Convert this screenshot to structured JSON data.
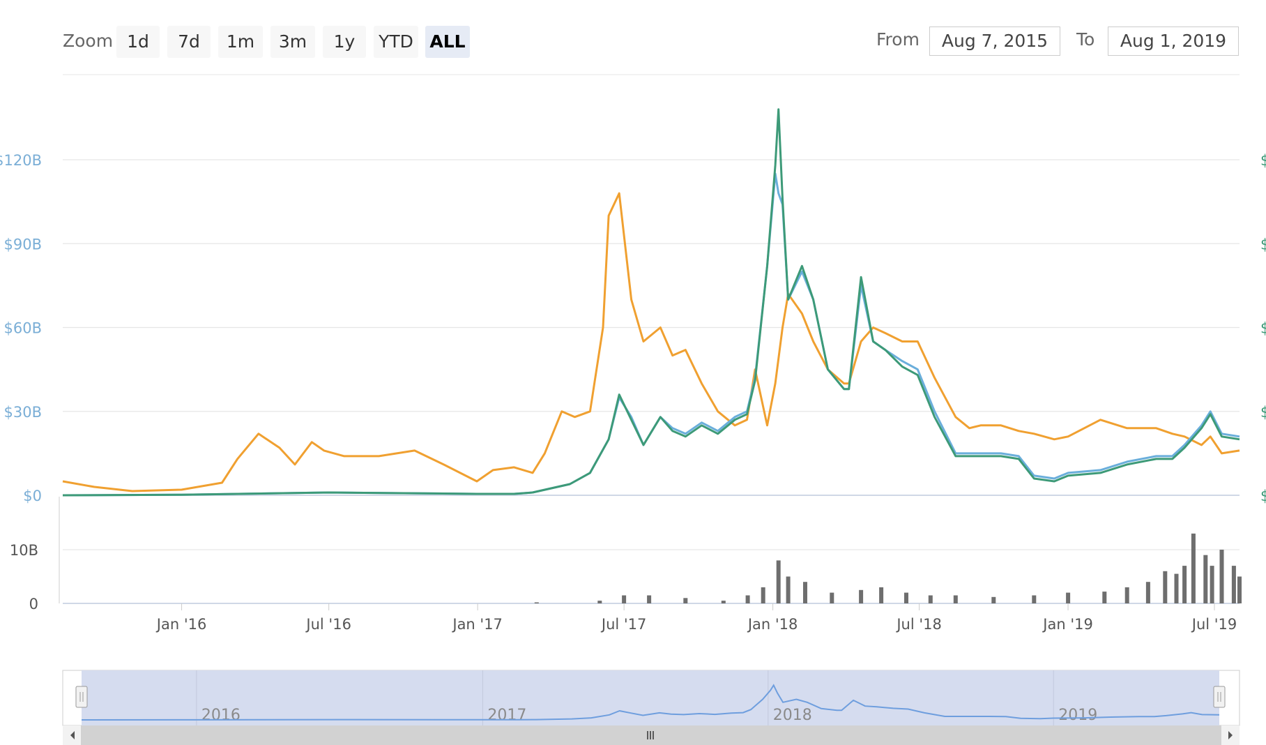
{
  "toolbar": {
    "zoom_label": "Zoom",
    "zoom_buttons": [
      "1d",
      "7d",
      "1m",
      "3m",
      "1y",
      "YTD",
      "ALL"
    ],
    "active_zoom": "ALL",
    "from_label": "From",
    "from_value": "Aug 7, 2015",
    "to_label": "To",
    "to_value": "Aug 1, 2019"
  },
  "colors": {
    "orange": "#f0a030",
    "green": "#3d9a78",
    "blue": "#6aaedb",
    "volume": "#6e6e6e",
    "navigator_fill": "#d5dcef",
    "navigator_line": "#6e9ede"
  },
  "chart_data": {
    "type": "line",
    "title": "",
    "y_axis_left": {
      "ticks": [
        "$0",
        "$30B",
        "$60B",
        "$90B",
        "$120B"
      ],
      "ylim": [
        0,
        130
      ]
    },
    "x_axis_ticks": [
      "Jan '16",
      "Jul '16",
      "Jan '17",
      "Jul '17",
      "Jan '18",
      "Jul '18",
      "Jan '19",
      "Jul '19"
    ],
    "x_tick_dates": [
      "2016-01-01",
      "2016-07-01",
      "2017-01-01",
      "2017-07-01",
      "2018-01-01",
      "2018-07-01",
      "2019-01-01",
      "2019-07-01"
    ],
    "x_range": [
      "2015-08-07",
      "2019-08-01"
    ],
    "series": [
      {
        "color": "#f0a030",
        "x": [
          "2015-08-07",
          "2015-09-15",
          "2015-11-01",
          "2016-01-01",
          "2016-02-20",
          "2016-03-10",
          "2016-04-05",
          "2016-05-01",
          "2016-05-20",
          "2016-06-10",
          "2016-06-25",
          "2016-07-20",
          "2016-09-01",
          "2016-10-15",
          "2016-11-20",
          "2016-12-31",
          "2017-01-20",
          "2017-02-15",
          "2017-03-10",
          "2017-03-25",
          "2017-04-15",
          "2017-05-01",
          "2017-05-20",
          "2017-06-05",
          "2017-06-12",
          "2017-06-25",
          "2017-07-10",
          "2017-07-25",
          "2017-08-15",
          "2017-08-30",
          "2017-09-15",
          "2017-10-05",
          "2017-10-25",
          "2017-11-15",
          "2017-11-30",
          "2017-12-10",
          "2017-12-25",
          "2018-01-04",
          "2018-01-13",
          "2018-01-20",
          "2018-02-06",
          "2018-02-20",
          "2018-03-10",
          "2018-03-30",
          "2018-04-05",
          "2018-04-20",
          "2018-05-05",
          "2018-05-20",
          "2018-06-10",
          "2018-06-29",
          "2018-07-20",
          "2018-08-15",
          "2018-09-01",
          "2018-09-15",
          "2018-10-10",
          "2018-11-01",
          "2018-11-20",
          "2018-12-15",
          "2019-01-01",
          "2019-02-10",
          "2019-03-15",
          "2019-04-20",
          "2019-05-10",
          "2019-05-25",
          "2019-06-15",
          "2019-06-26",
          "2019-07-10",
          "2019-08-01"
        ],
        "values": [
          5,
          3,
          1.5,
          2,
          4.5,
          13,
          22,
          17,
          11,
          19,
          16,
          14,
          14,
          16,
          11,
          5,
          9,
          10,
          8,
          15,
          30,
          28,
          30,
          60,
          100,
          108,
          70,
          55,
          60,
          50,
          52,
          40,
          30,
          25,
          27,
          45,
          25,
          40,
          60,
          72,
          65,
          55,
          45,
          40,
          40,
          55,
          60,
          58,
          55,
          55,
          42,
          28,
          24,
          25,
          25,
          23,
          22,
          20,
          21,
          27,
          24,
          24,
          22,
          21,
          18,
          21,
          15,
          16
        ]
      },
      {
        "color": "#6aaedb",
        "x": [
          "2015-08-07",
          "2016-01-01",
          "2016-07-01",
          "2016-12-31",
          "2017-02-15",
          "2017-03-10",
          "2017-04-25",
          "2017-05-20",
          "2017-06-12",
          "2017-06-25",
          "2017-07-10",
          "2017-07-25",
          "2017-08-15",
          "2017-08-30",
          "2017-09-15",
          "2017-10-05",
          "2017-10-25",
          "2017-11-15",
          "2017-11-30",
          "2017-12-10",
          "2017-12-25",
          "2018-01-04",
          "2018-01-08",
          "2018-01-13",
          "2018-01-20",
          "2018-02-06",
          "2018-02-20",
          "2018-03-10",
          "2018-03-30",
          "2018-04-05",
          "2018-04-20",
          "2018-05-05",
          "2018-05-20",
          "2018-06-10",
          "2018-06-29",
          "2018-07-20",
          "2018-08-15",
          "2018-09-01",
          "2018-09-15",
          "2018-10-10",
          "2018-11-01",
          "2018-11-20",
          "2018-12-15",
          "2019-01-01",
          "2019-02-10",
          "2019-03-15",
          "2019-04-20",
          "2019-05-10",
          "2019-05-25",
          "2019-06-15",
          "2019-06-26",
          "2019-07-10",
          "2019-08-01"
        ],
        "values": [
          0,
          0.2,
          1,
          0.5,
          0.5,
          1,
          4,
          8,
          20,
          35,
          28,
          18,
          28,
          24,
          22,
          26,
          23,
          28,
          30,
          42,
          82,
          115,
          108,
          104,
          70,
          80,
          70,
          45,
          38,
          38,
          75,
          55,
          52,
          48,
          45,
          30,
          15,
          15,
          15,
          15,
          14,
          7,
          6,
          8,
          9,
          12,
          14,
          14,
          18,
          25,
          30,
          22,
          21
        ]
      },
      {
        "color": "#3d9a78",
        "x": [
          "2015-08-07",
          "2016-01-01",
          "2016-07-01",
          "2016-12-31",
          "2017-02-15",
          "2017-03-10",
          "2017-04-25",
          "2017-05-20",
          "2017-06-12",
          "2017-06-25",
          "2017-07-10",
          "2017-07-25",
          "2017-08-15",
          "2017-08-30",
          "2017-09-15",
          "2017-10-05",
          "2017-10-25",
          "2017-11-15",
          "2017-11-30",
          "2017-12-10",
          "2017-12-25",
          "2018-01-04",
          "2018-01-08",
          "2018-01-13",
          "2018-01-20",
          "2018-02-06",
          "2018-02-20",
          "2018-03-10",
          "2018-03-30",
          "2018-04-05",
          "2018-04-20",
          "2018-05-05",
          "2018-05-20",
          "2018-06-10",
          "2018-06-29",
          "2018-07-20",
          "2018-08-15",
          "2018-09-01",
          "2018-09-15",
          "2018-10-10",
          "2018-11-01",
          "2018-11-20",
          "2018-12-15",
          "2019-01-01",
          "2019-02-10",
          "2019-03-15",
          "2019-04-20",
          "2019-05-10",
          "2019-05-25",
          "2019-06-15",
          "2019-06-26",
          "2019-07-10",
          "2019-08-01"
        ],
        "values": [
          0,
          0.2,
          1,
          0.5,
          0.5,
          1,
          4,
          8,
          20,
          36,
          27,
          18,
          28,
          23,
          21,
          25,
          22,
          27,
          29,
          41,
          82,
          118,
          138,
          106,
          70,
          82,
          70,
          45,
          38,
          38,
          78,
          55,
          52,
          46,
          43,
          28,
          14,
          14,
          14,
          14,
          13,
          6,
          5,
          7,
          8,
          11,
          13,
          13,
          17,
          24,
          29,
          21,
          20
        ]
      }
    ],
    "volume": {
      "ticks": [
        "0",
        "10B"
      ],
      "ylim": [
        0,
        12
      ],
      "x": [
        "2017-03-15",
        "2017-06-01",
        "2017-07-01",
        "2017-08-01",
        "2017-09-15",
        "2017-11-01",
        "2017-12-01",
        "2017-12-20",
        "2018-01-08",
        "2018-01-20",
        "2018-02-10",
        "2018-03-15",
        "2018-04-20",
        "2018-05-15",
        "2018-06-15",
        "2018-07-15",
        "2018-08-15",
        "2018-10-01",
        "2018-11-20",
        "2019-01-01",
        "2019-02-15",
        "2019-03-15",
        "2019-04-10",
        "2019-05-01",
        "2019-05-15",
        "2019-05-25",
        "2019-06-05",
        "2019-06-20",
        "2019-06-28",
        "2019-07-10",
        "2019-07-25",
        "2019-08-01"
      ],
      "values": [
        0.2,
        0.5,
        1.5,
        1.5,
        1,
        0.5,
        1.5,
        3,
        8,
        5,
        4,
        2,
        2.5,
        3,
        2,
        1.5,
        1.5,
        1.2,
        1.5,
        2,
        2.2,
        3,
        4,
        6,
        5.5,
        7,
        13,
        9,
        7,
        10,
        7,
        5
      ]
    },
    "navigator": {
      "years": [
        "2016",
        "2017",
        "2018",
        "2019"
      ],
      "year_dates": [
        "2016-01-01",
        "2017-01-01",
        "2018-01-01",
        "2019-01-01"
      ]
    }
  }
}
